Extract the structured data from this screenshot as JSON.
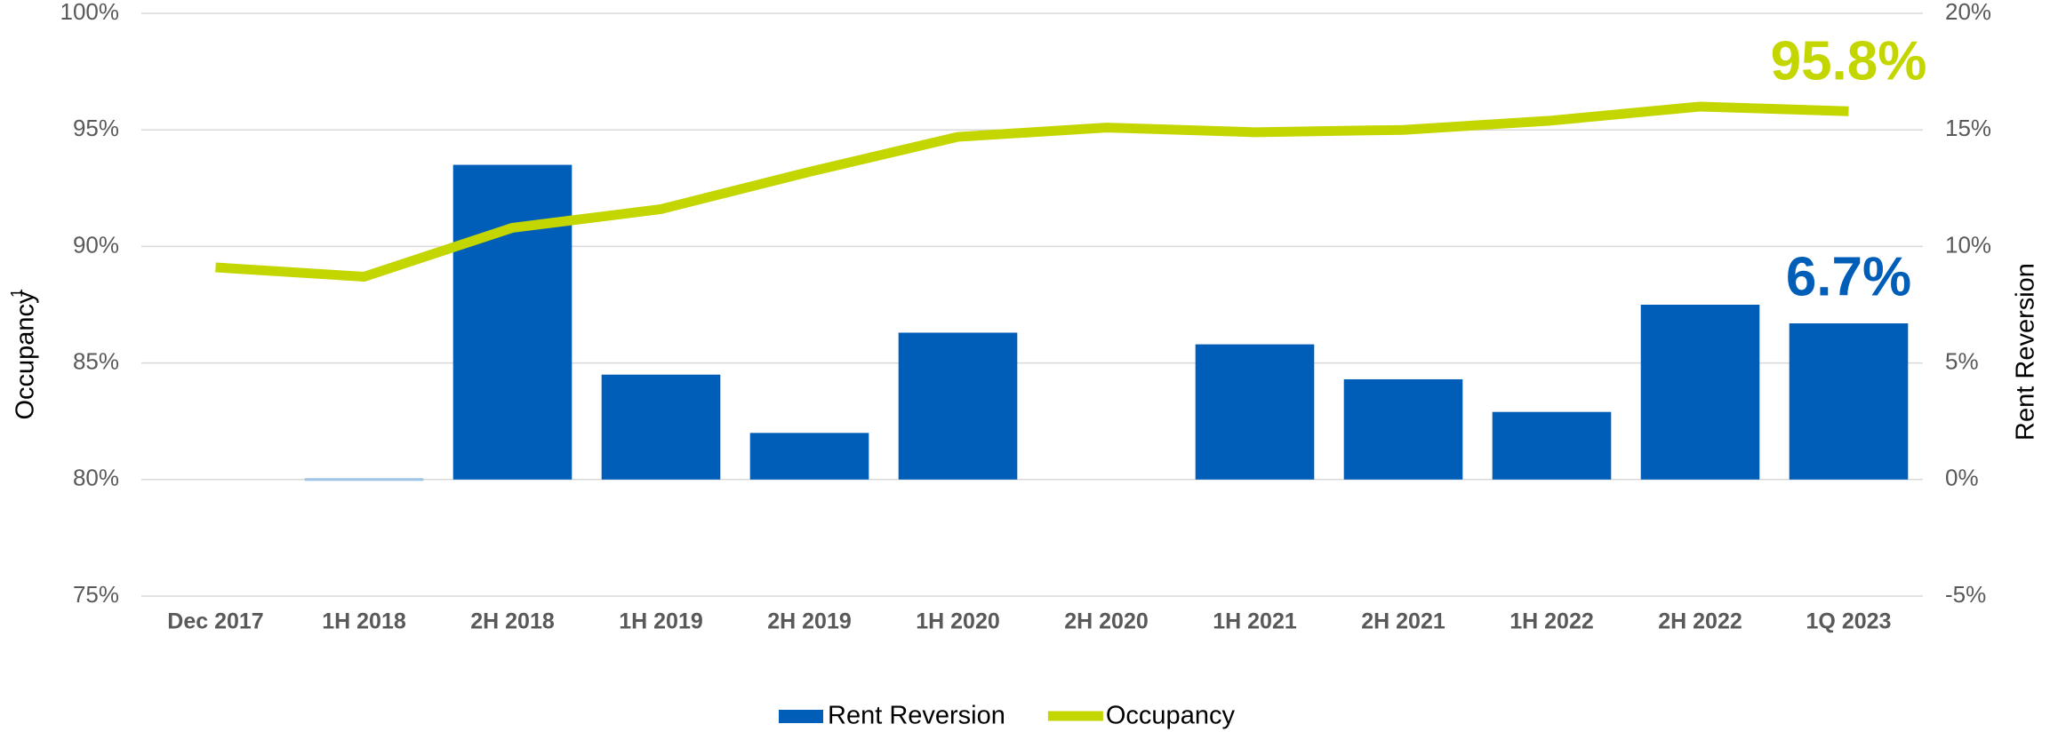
{
  "chart_data": {
    "type": "bar_line",
    "categories": [
      "Dec 2017",
      "1H 2018",
      "2H 2018",
      "1H 2019",
      "2H 2019",
      "1H 2020",
      "2H 2020",
      "1H 2021",
      "2H 2021",
      "1H 2022",
      "2H 2022",
      "1Q 2023"
    ],
    "y_label": "Occupancy",
    "y_label_note": "1",
    "y2_label": "Rent Reversion",
    "ylim": [
      75,
      100
    ],
    "yticks": [
      {
        "value": 75,
        "label": "75%"
      },
      {
        "value": 80,
        "label": "80%"
      },
      {
        "value": 85,
        "label": "85%"
      },
      {
        "value": 90,
        "label": "90%"
      },
      {
        "value": 95,
        "label": "95%"
      },
      {
        "value": 100,
        "label": "100%"
      }
    ],
    "y2lim": [
      -5,
      20
    ],
    "y2ticks": [
      {
        "value": -5,
        "label": "-5%"
      },
      {
        "value": 0,
        "label": "0%"
      },
      {
        "value": 5,
        "label": "5%"
      },
      {
        "value": 10,
        "label": "10%"
      },
      {
        "value": 15,
        "label": "15%"
      },
      {
        "value": 20,
        "label": "20%"
      }
    ],
    "grid": true,
    "series": [
      {
        "name": "Rent Reversion",
        "type": "bar",
        "axis": "y2",
        "color": "#005EB8",
        "colors": [
          null,
          "#9DC3E6",
          null,
          null,
          null,
          null,
          null,
          null,
          null,
          null,
          null,
          null
        ],
        "values": [
          null,
          0,
          13.5,
          4.5,
          2.0,
          6.3,
          null,
          5.8,
          4.3,
          2.9,
          7.5,
          6.7
        ],
        "value_labels": [
          null,
          null,
          null,
          null,
          null,
          null,
          null,
          null,
          null,
          null,
          null,
          "6.7%"
        ]
      },
      {
        "name": "Occupancy",
        "type": "line",
        "color": "#C4D600",
        "values": [
          89.1,
          88.7,
          90.8,
          91.6,
          93.2,
          94.7,
          95.1,
          94.9,
          95.0,
          95.4,
          96.0,
          95.8
        ],
        "value_labels": [
          null,
          null,
          null,
          null,
          null,
          null,
          null,
          null,
          null,
          null,
          null,
          "95.8%"
        ]
      }
    ]
  }
}
